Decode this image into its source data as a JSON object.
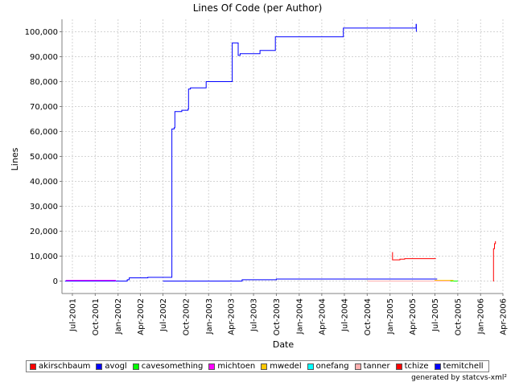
{
  "chart_data": {
    "type": "line",
    "title": "Lines Of Code (per Author)",
    "xlabel": "Date",
    "ylabel": "Lines",
    "xlim": [
      "2001-05-20",
      "2006-04-01"
    ],
    "ylim": [
      -5000,
      105000
    ],
    "y_ticks": [
      0,
      10000,
      20000,
      30000,
      40000,
      50000,
      60000,
      70000,
      80000,
      90000,
      100000
    ],
    "y_tick_labels": [
      "0",
      "10,000",
      "20,000",
      "30,000",
      "40,000",
      "50,000",
      "60,000",
      "70,000",
      "80,000",
      "90,000",
      "100,000"
    ],
    "x_ticks": [
      "2001-07-01",
      "2001-10-01",
      "2002-01-01",
      "2002-04-01",
      "2002-07-01",
      "2002-10-01",
      "2003-01-01",
      "2003-04-01",
      "2003-07-01",
      "2003-10-01",
      "2004-01-01",
      "2004-04-01",
      "2004-07-01",
      "2004-10-01",
      "2005-01-01",
      "2005-04-01",
      "2005-07-01",
      "2005-10-01",
      "2006-01-01",
      "2006-04-01"
    ],
    "x_tick_labels": [
      "Jul-2001",
      "Oct-2001",
      "Jan-2002",
      "Apr-2002",
      "Jul-2002",
      "Oct-2002",
      "Jan-2003",
      "Apr-2003",
      "Jul-2003",
      "Oct-2003",
      "Jan-2004",
      "Apr-2004",
      "Jul-2004",
      "Oct-2004",
      "Jan-2005",
      "Apr-2005",
      "Jul-2005",
      "Oct-2005",
      "Jan-2006",
      "Apr-2006"
    ],
    "grid": true,
    "legend_position": "bottom",
    "series": [
      {
        "name": "akirschbaum",
        "color": "#ff0000",
        "points": [
          [
            "2006-02-20",
            0
          ],
          [
            "2006-02-22",
            13000
          ],
          [
            "2006-02-26",
            15000
          ],
          [
            "2006-03-02",
            16000
          ]
        ]
      },
      {
        "name": "avogl",
        "color": "#0000ff",
        "points": [
          [
            "2001-06-01",
            0
          ],
          [
            "2002-02-05",
            0
          ],
          [
            "2002-02-07",
            500
          ],
          [
            "2002-02-15",
            1300
          ],
          [
            "2002-05-01",
            1500
          ],
          [
            "2002-08-05",
            1500
          ],
          [
            "2002-08-06",
            61000
          ],
          [
            "2002-08-15",
            61500
          ],
          [
            "2002-08-18",
            68000
          ],
          [
            "2002-09-15",
            68500
          ],
          [
            "2002-10-10",
            69000
          ],
          [
            "2002-10-12",
            77000
          ],
          [
            "2002-10-20",
            77500
          ],
          [
            "2002-12-20",
            77500
          ],
          [
            "2002-12-22",
            80000
          ],
          [
            "2003-04-05",
            80000
          ],
          [
            "2003-04-06",
            95500
          ],
          [
            "2003-04-28",
            95500
          ],
          [
            "2003-04-30",
            90500
          ],
          [
            "2003-05-08",
            91200
          ],
          [
            "2003-07-25",
            91200
          ],
          [
            "2003-07-27",
            92500
          ],
          [
            "2003-09-25",
            92500
          ],
          [
            "2003-09-27",
            98000
          ],
          [
            "2004-06-25",
            98000
          ],
          [
            "2004-06-27",
            101500
          ],
          [
            "2005-04-15",
            101500
          ],
          [
            "2005-04-16",
            103000
          ],
          [
            "2005-04-17",
            100000
          ]
        ]
      },
      {
        "name": "cavesomething",
        "color": "#00ff00",
        "points": [
          [
            "2004-10-01",
            0
          ],
          [
            "2005-10-01",
            0
          ]
        ]
      },
      {
        "name": "michtoen",
        "color": "#ff00ff",
        "points": [
          [
            "2001-06-05",
            300
          ],
          [
            "2001-12-20",
            300
          ],
          [
            "2001-12-22",
            0
          ]
        ]
      },
      {
        "name": "mwedel",
        "color": "#ffc800",
        "points": [
          [
            "2005-06-25",
            0
          ],
          [
            "2005-07-01",
            300
          ],
          [
            "2005-09-10",
            300
          ],
          [
            "2005-09-12",
            0
          ]
        ]
      },
      {
        "name": "onefang",
        "color": "#00ffff",
        "points": [
          [
            "2004-10-01",
            0
          ],
          [
            "2005-09-01",
            0
          ]
        ]
      },
      {
        "name": "tanner",
        "color": "#ffafaf",
        "points": [
          [
            "2004-10-01",
            0
          ],
          [
            "2005-09-01",
            0
          ]
        ]
      },
      {
        "name": "tchize",
        "color": "#ff0000",
        "points": [
          [
            "2005-01-10",
            11500
          ],
          [
            "2005-01-11",
            8500
          ],
          [
            "2005-02-10",
            8800
          ],
          [
            "2005-03-01",
            9000
          ],
          [
            "2005-07-05",
            9000
          ]
        ]
      },
      {
        "name": "temitchell",
        "color": "#0000ff",
        "points": [
          [
            "2002-07-01",
            0
          ],
          [
            "2003-05-15",
            0
          ],
          [
            "2003-05-16",
            500
          ],
          [
            "2003-10-01",
            800
          ],
          [
            "2005-07-10",
            800
          ]
        ]
      }
    ]
  },
  "footer": "generated by statcvs-xml²"
}
